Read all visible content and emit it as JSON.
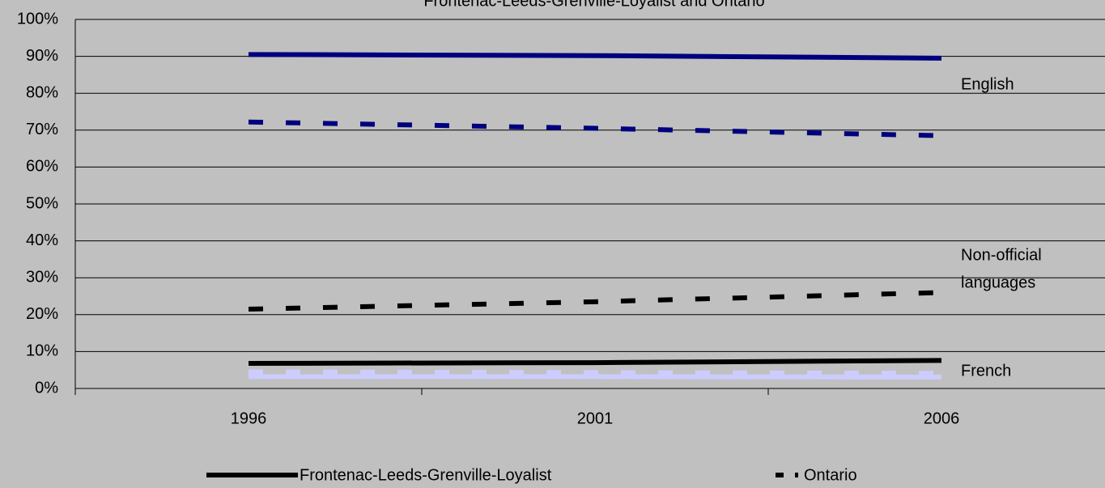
{
  "chart_data": {
    "type": "line",
    "title": "Frontenac-Leeds-Grenville-Loyalist and Ontario",
    "categories": [
      "1996",
      "2001",
      "2006"
    ],
    "ylim": [
      0,
      100
    ],
    "yticks": [
      {
        "value": 0,
        "label": "0%"
      },
      {
        "value": 10,
        "label": "10%"
      },
      {
        "value": 20,
        "label": "20%"
      },
      {
        "value": 30,
        "label": "30%"
      },
      {
        "value": 40,
        "label": "40%"
      },
      {
        "value": 50,
        "label": "50%"
      },
      {
        "value": 60,
        "label": "60%"
      },
      {
        "value": 70,
        "label": "70%"
      },
      {
        "value": 80,
        "label": "80%"
      },
      {
        "value": 90,
        "label": "90%"
      },
      {
        "value": 100,
        "label": "100%"
      }
    ],
    "grid": true,
    "legend_position": "bottom",
    "legend": [
      {
        "label": "Frontenac-Leeds-Grenville-Loyalist",
        "dashed": false,
        "color": "#000000"
      },
      {
        "label": "Ontario",
        "dashed": true,
        "color": "#000000"
      }
    ],
    "series": [
      {
        "color": "#00007f",
        "dashed": false,
        "values": [
          90.5,
          90.2,
          89.5
        ]
      },
      {
        "color": "#00007f",
        "dashed": true,
        "values": [
          72.2,
          70.5,
          68.5
        ]
      },
      {
        "color": "#000000",
        "dashed": true,
        "values": [
          21.5,
          23.5,
          26.0
        ]
      },
      {
        "color": "#000000",
        "dashed": false,
        "values": [
          6.8,
          7.0,
          7.6
        ]
      },
      {
        "color": "#ccccff",
        "dashed": true,
        "values": [
          4.5,
          4.3,
          4.1
        ]
      },
      {
        "color": "#ccccff",
        "dashed": false,
        "values": [
          3.2,
          3.2,
          3.1
        ]
      }
    ],
    "annotations": [
      {
        "lines": [
          "English"
        ]
      },
      {
        "lines": [
          "Non-official",
          "languages"
        ]
      },
      {
        "lines": [
          "French"
        ]
      }
    ]
  }
}
